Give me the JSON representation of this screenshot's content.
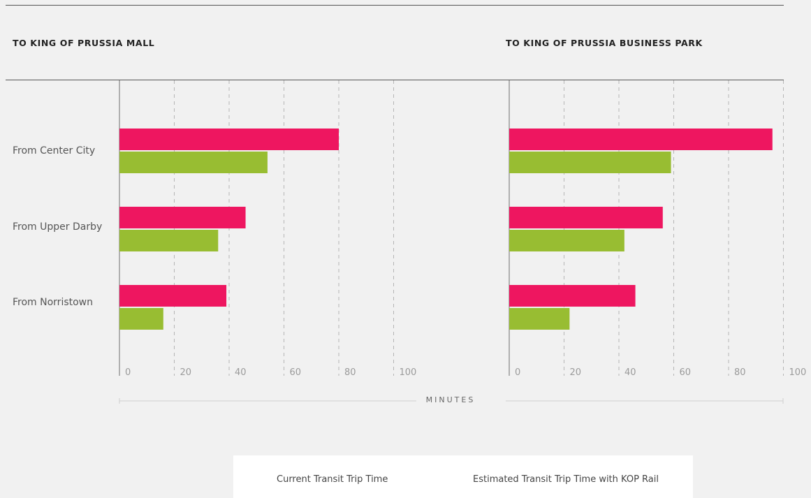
{
  "colors": {
    "current": "#ee1660",
    "estimated": "#98bd32",
    "axis": "#9a9a9a",
    "grid": "#b5b5b5",
    "tick_text": "#9a9a9a"
  },
  "legend": {
    "current": "Current Transit Trip Time",
    "estimated": "Estimated Transit Trip Time with KOP Rail"
  },
  "categories": [
    "From Center City",
    "From Upper Darby",
    "From Norristown"
  ],
  "axis_title": "MINUTES",
  "chart_data": [
    {
      "type": "bar",
      "orientation": "horizontal",
      "title": "TO KING OF PRUSSIA MALL",
      "categories": [
        "From Center City",
        "From Upper Darby",
        "From Norristown"
      ],
      "xlabel": "MINUTES",
      "xlim": [
        0,
        100
      ],
      "x_ticks": [
        "0",
        "20",
        "40",
        "60",
        "80",
        "100"
      ],
      "grid": true,
      "series": [
        {
          "name": "Current Transit Trip Time",
          "values": [
            80,
            46,
            39
          ]
        },
        {
          "name": "Estimated Transit Trip Time with KOP Rail",
          "values": [
            54,
            36,
            16
          ]
        }
      ]
    },
    {
      "type": "bar",
      "orientation": "horizontal",
      "title": "TO KING OF PRUSSIA BUSINESS PARK",
      "categories": [
        "From Center City",
        "From Upper Darby",
        "From Norristown"
      ],
      "xlabel": "MINUTES",
      "xlim": [
        0,
        100
      ],
      "x_ticks": [
        "0",
        "20",
        "40",
        "60",
        "80",
        "100"
      ],
      "grid": true,
      "series": [
        {
          "name": "Current Transit Trip Time",
          "values": [
            96,
            56,
            46
          ]
        },
        {
          "name": "Estimated Transit Trip Time with KOP Rail",
          "values": [
            59,
            42,
            22
          ]
        }
      ]
    }
  ]
}
